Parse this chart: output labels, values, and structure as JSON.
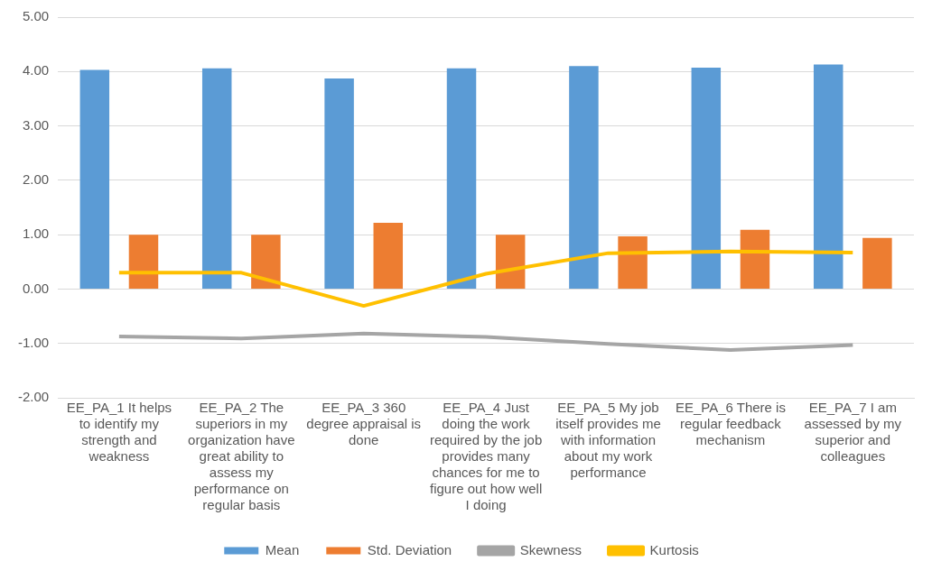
{
  "chart_data": {
    "type": "bar",
    "categories": [
      "EE_PA_1 It helps to identify my strength and weakness",
      "EE_PA_2 The superiors in my organization have great ability to assess my performance on regular basis",
      "EE_PA_3 360 degree appraisal is done",
      "EE_PA_4 Just doing the work required by the job provides many chances for me to figure out how well I doing",
      "EE_PA_5 My job itself provides me with information about my work performance",
      "EE_PA_6 There is regular feedback mechanism",
      "EE_PA_7 I am assessed by my superior and colleagues"
    ],
    "series": [
      {
        "name": "Mean",
        "color": "#5b9bd5",
        "values": [
          4.03,
          4.06,
          3.87,
          4.06,
          4.1,
          4.07,
          4.13
        ]
      },
      {
        "name": "Std. Deviation",
        "color": "#ed7d31",
        "values": [
          1.0,
          1.0,
          1.22,
          1.0,
          0.97,
          1.09,
          0.94
        ]
      },
      {
        "name": "Skewness",
        "type": "line",
        "color": "#a5a5a5",
        "values": [
          -0.87,
          -0.91,
          -0.82,
          -0.88,
          -1.01,
          -1.12,
          -1.03
        ]
      },
      {
        "name": "Kurtosis",
        "type": "line",
        "color": "#ffc000",
        "values": [
          0.3,
          0.3,
          -0.31,
          0.28,
          0.66,
          0.69,
          0.67
        ]
      }
    ],
    "ylim": [
      -2,
      5
    ],
    "yticks": [
      {
        "value": -2,
        "label": "-2.00"
      },
      {
        "value": -1,
        "label": "-1.00"
      },
      {
        "value": 0,
        "label": "0.00"
      },
      {
        "value": 1,
        "label": "1.00"
      },
      {
        "value": 2,
        "label": "2.00"
      },
      {
        "value": 3,
        "label": "3.00"
      },
      {
        "value": 4,
        "label": "4.00"
      },
      {
        "value": 5,
        "label": "5.00"
      }
    ],
    "grid": "y",
    "legend": "bottom",
    "marker": "none"
  }
}
